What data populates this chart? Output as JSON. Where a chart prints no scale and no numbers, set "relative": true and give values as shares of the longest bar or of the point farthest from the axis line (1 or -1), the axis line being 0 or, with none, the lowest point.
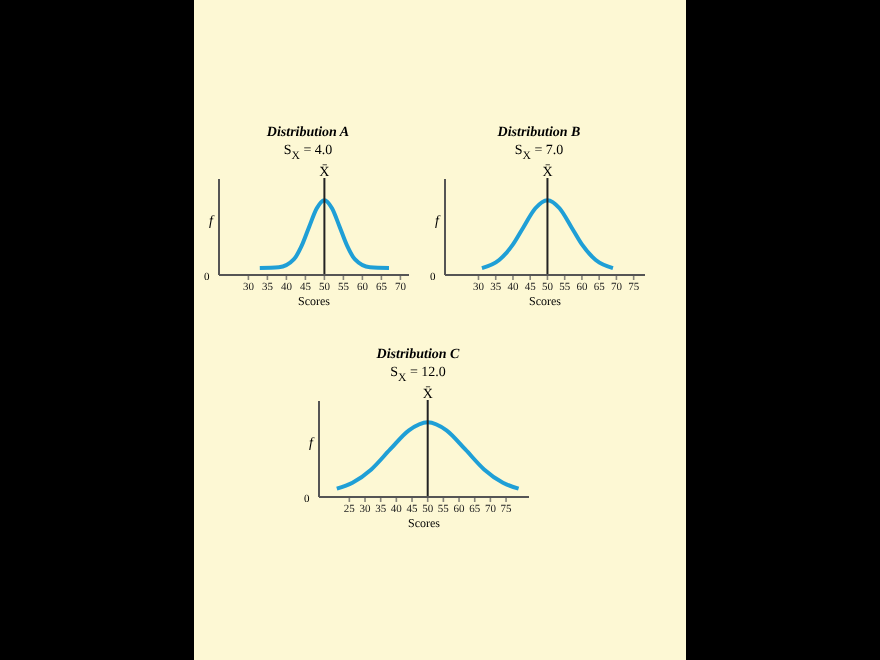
{
  "chart_data": [
    {
      "type": "line",
      "title": "Distribution A",
      "annotations": [
        "S$_{X}$ = 4.0",
        "0"
      ],
      "xlabel": "Scores",
      "ylabel": "f",
      "relative": true,
      "xlim": [
        22,
        72
      ],
      "xticks": [
        30,
        35,
        40,
        45,
        50,
        55,
        60,
        65,
        70
      ],
      "x": [
        33,
        38,
        42,
        44,
        46,
        48,
        50,
        52,
        54,
        56,
        58,
        62,
        67
      ],
      "series": [
        {
          "color": "#1f9fd6",
          "values": [
            0.08,
            0.09,
            0.2,
            0.38,
            0.64,
            0.89,
            1,
            0.89,
            0.64,
            0.38,
            0.2,
            0.09,
            0.08
          ]
        }
      ],
      "ref_lines": [
        {
          "axis": "x",
          "value": 50,
          "label": "X̄"
        }
      ]
    },
    {
      "type": "line",
      "title": "Distribution B",
      "annotations": [
        "S$_{X}$ = 7.0",
        "0"
      ],
      "xlabel": "Scores",
      "ylabel": "f",
      "relative": true,
      "xlim": [
        20,
        78
      ],
      "xticks": [
        30,
        35,
        40,
        45,
        50,
        55,
        60,
        65,
        70,
        75
      ],
      "x": [
        31,
        36,
        40,
        43,
        46.5,
        50,
        53.5,
        57,
        60,
        64,
        69
      ],
      "series": [
        {
          "color": "#1f9fd6",
          "values": [
            0.08,
            0.19,
            0.4,
            0.63,
            0.89,
            1,
            0.89,
            0.63,
            0.4,
            0.19,
            0.08
          ]
        }
      ],
      "ref_lines": [
        {
          "axis": "x",
          "value": 50,
          "label": "X̄"
        }
      ]
    },
    {
      "type": "line",
      "title": "Distribution C",
      "annotations": [
        "S$_{X}$ = 12.0",
        "0"
      ],
      "xlabel": "Scores",
      "ylabel": "f",
      "relative": true,
      "xlim": [
        15,
        82
      ],
      "xticks": [
        25,
        30,
        35,
        40,
        45,
        50,
        55,
        60,
        65,
        70,
        75
      ],
      "x": [
        21,
        26,
        32,
        38,
        44,
        50,
        56,
        62,
        68,
        74,
        79
      ],
      "series": [
        {
          "color": "#1f9fd6",
          "values": [
            0.1,
            0.18,
            0.36,
            0.63,
            0.89,
            1,
            0.89,
            0.63,
            0.36,
            0.18,
            0.1
          ]
        }
      ],
      "ref_lines": [
        {
          "axis": "x",
          "value": 50,
          "label": "X̄"
        }
      ]
    }
  ]
}
